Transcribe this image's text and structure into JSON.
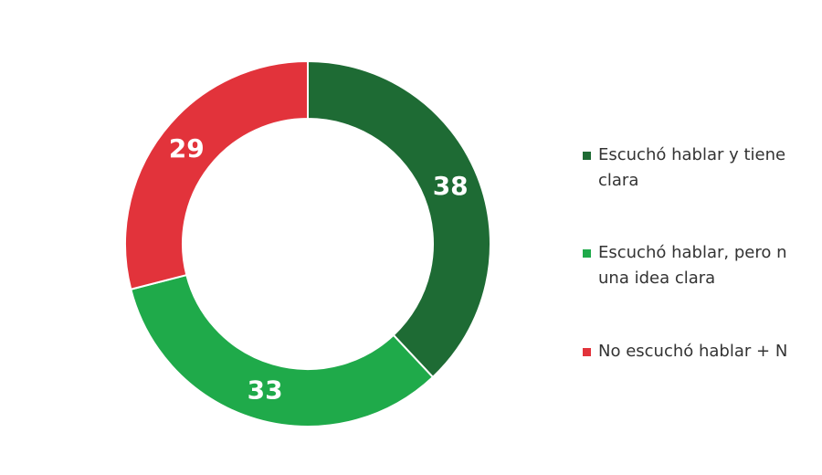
{
  "chart_data": {
    "type": "pie",
    "categories": [
      [
        "Escuchó hablar y tiene",
        "clara"
      ],
      [
        "Escuchó hablar, pero n",
        "una idea clara"
      ],
      [
        "No escuchó hablar + N"
      ]
    ],
    "values": [
      38,
      33,
      29
    ],
    "colors": [
      "#1e6b34",
      "#1faa4a",
      "#e2333b"
    ]
  }
}
